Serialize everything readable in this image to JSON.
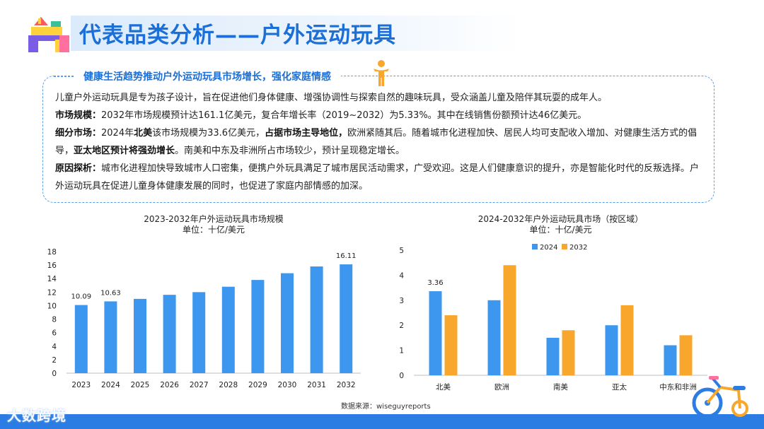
{
  "header": {
    "title": "代表品类分析——户外运动玩具"
  },
  "summary": {
    "heading": "健康生活趋势推动户外运动玩具市场增长，强化家庭情感",
    "p1": "儿童户外运动玩具是专为孩子设计，旨在促进他们身体健康、增强协调性与探索自然的趣味玩具，受众涵盖儿童及陪伴其玩耍的成年人。",
    "p2_label": "市场规模：",
    "p2_text": "2032年市场规模预计达161.1亿美元，复合年增长率（2019~2032）为5.33%。其中在线销售份额预计达46亿美元。",
    "p3_label": "细分市场：",
    "p3_a": "2024年",
    "p3_b": "北美",
    "p3_c": "该市场规模为33.6亿美元，",
    "p3_d": "占据市场主导地位，",
    "p3_e": "欧洲紧随其后。随着城市化进程加快、居民人均可支配收入增加、对健康生活方式的倡导，",
    "p3_f": "亚太地区预计将强劲增长",
    "p3_g": "。南美和中东及非洲所占市场较少，预计呈现稳定增长。",
    "p4_label": "原因探析：",
    "p4_text": "城市化进程加快导致城市人口密集，便携户外玩具满足了城市居民活动需求，广受欢迎。这是人们健康意识的提升，亦是智能化时代的反叛选择。户外运动玩具在促进儿童身体健康发展的同时，也促进了家庭内部情感的加深。"
  },
  "source": "数据来源：wiseguyreports",
  "footer": {
    "brand": "大数跨境"
  },
  "chart_data": [
    {
      "type": "bar",
      "title": "2023-2032年户外运动玩具市场规模",
      "subtitle": "单位：十亿/美元",
      "categories": [
        "2023",
        "2024",
        "2025",
        "2026",
        "2027",
        "2028",
        "2029",
        "2030",
        "2031",
        "2032"
      ],
      "values": [
        10.09,
        10.63,
        11.0,
        11.6,
        12.0,
        12.8,
        13.8,
        14.8,
        15.8,
        16.11
      ],
      "data_labels": {
        "0": "10.09",
        "1": "10.63",
        "9": "16.11"
      },
      "yticks": [
        "0",
        "2",
        "4",
        "6",
        "8",
        "10",
        "12",
        "14",
        "16",
        "18"
      ],
      "ylim": [
        0,
        18
      ],
      "color": "#3d97ee",
      "grid": false,
      "legend": "none"
    },
    {
      "type": "bar",
      "title": "2024-2032年户外运动玩具市场（按区域）",
      "subtitle": "单位：十亿/美元",
      "categories": [
        "北美",
        "欧洲",
        "南美",
        "亚太",
        "中东和非洲"
      ],
      "series": [
        {
          "name": "2024",
          "values": [
            3.36,
            3.0,
            1.5,
            2.0,
            1.2
          ],
          "color": "#3d97ee"
        },
        {
          "name": "2032",
          "values": [
            2.4,
            4.4,
            1.8,
            2.8,
            1.6
          ],
          "color": "#f8a72c"
        }
      ],
      "data_labels": {
        "0": "3.36"
      },
      "yticks": [
        "0",
        "1",
        "2",
        "3",
        "4",
        "5"
      ],
      "ylim": [
        0,
        5
      ],
      "grid": false,
      "legend": "top"
    }
  ]
}
